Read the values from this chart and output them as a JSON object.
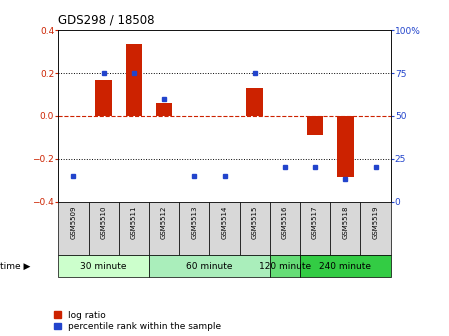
{
  "title": "GDS298 / 18508",
  "samples": [
    "GSM5509",
    "GSM5510",
    "GSM5511",
    "GSM5512",
    "GSM5513",
    "GSM5514",
    "GSM5515",
    "GSM5516",
    "GSM5517",
    "GSM5518",
    "GSM5519"
  ],
  "log_ratio": [
    0.0,
    0.17,
    0.335,
    0.06,
    0.0,
    0.0,
    0.13,
    0.0,
    -0.09,
    -0.285,
    0.0
  ],
  "percentile": [
    15,
    75,
    75,
    60,
    15,
    15,
    75,
    20,
    20,
    13,
    20
  ],
  "groups": [
    {
      "label": "30 minute",
      "start": 0,
      "end": 2,
      "color": "#ccffcc"
    },
    {
      "label": "60 minute",
      "start": 3,
      "end": 6,
      "color": "#aaeebb"
    },
    {
      "label": "120 minute",
      "start": 7,
      "end": 7,
      "color": "#66dd77"
    },
    {
      "label": "240 minute",
      "start": 8,
      "end": 10,
      "color": "#33cc44"
    }
  ],
  "bar_color": "#cc2200",
  "dot_color": "#2244cc",
  "ylim_left": [
    -0.4,
    0.4
  ],
  "ylim_right": [
    0,
    100
  ],
  "yticks_left": [
    -0.4,
    -0.2,
    0.0,
    0.2,
    0.4
  ],
  "yticks_right": [
    0,
    25,
    50,
    75,
    100
  ],
  "hline_y": 0.0,
  "dotted_lines": [
    -0.2,
    0.2
  ],
  "legend_entries": [
    "log ratio",
    "percentile rank within the sample"
  ],
  "time_label": "time",
  "gray_label_color": "#dddddd",
  "background_color": "#ffffff"
}
